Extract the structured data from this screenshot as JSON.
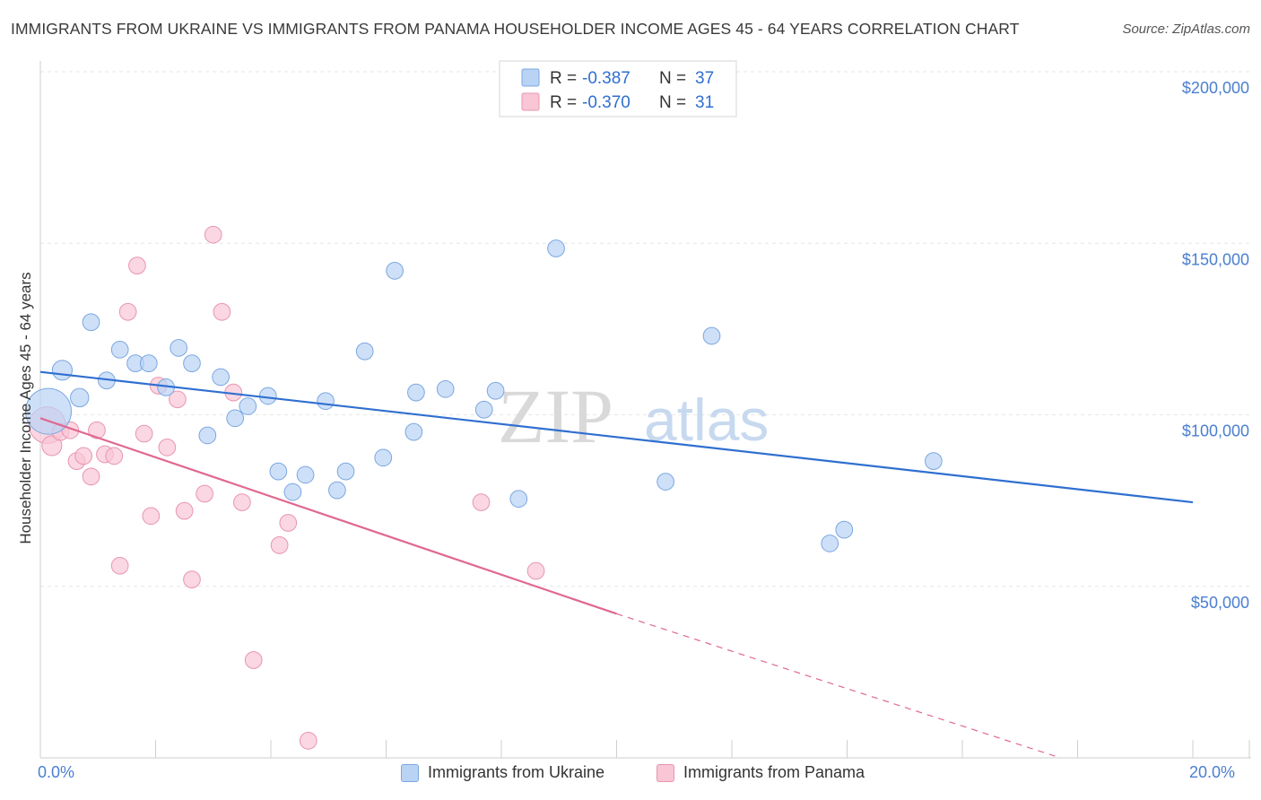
{
  "title": "IMMIGRANTS FROM UKRAINE VS IMMIGRANTS FROM PANAMA HOUSEHOLDER INCOME AGES 45 - 64 YEARS CORRELATION CHART",
  "source": "Source: ZipAtlas.com",
  "watermark": {
    "zip": "ZIP",
    "atlas": "atlas"
  },
  "colors": {
    "ukraine_fill": "#b9d3f5",
    "ukraine_stroke": "#7ba7e0",
    "ukraine_line": "#2f6fd0",
    "panama_fill": "#f8c6d5",
    "panama_stroke": "#e995b0",
    "panama_line": "#e06891",
    "axis_text": "#4a7fd0"
  },
  "legend": {
    "rows": [
      {
        "r_label": "R =",
        "r_value": "-0.387",
        "n_label": "N =",
        "n_value": "37"
      },
      {
        "r_label": "R =",
        "r_value": "-0.370",
        "n_label": "N =",
        "n_value": "31"
      }
    ]
  },
  "chart_data": {
    "type": "scatter",
    "title": "IMMIGRANTS FROM UKRAINE VS IMMIGRANTS FROM PANAMA HOUSEHOLDER INCOME AGES 45 - 64 YEARS CORRELATION CHART",
    "xlabel": "",
    "ylabel": "Householder Income Ages 45 - 64 years",
    "xlim": [
      0,
      20
    ],
    "ylim": [
      0,
      200000
    ],
    "x_tick_labels": [
      "0.0%",
      "20.0%"
    ],
    "y_ticks": [
      50000,
      100000,
      150000,
      200000
    ],
    "y_tick_labels": [
      "$50,000",
      "$100,000",
      "$150,000",
      "$200,000"
    ],
    "grid": true,
    "legend_position": "top-center",
    "series": [
      {
        "name": "Immigrants from Ukraine",
        "r": -0.387,
        "n": 37,
        "trend": {
          "x": [
            0,
            20
          ],
          "y": [
            112500,
            74500
          ],
          "dashed_from_x": null
        },
        "points": [
          {
            "x": 0.14,
            "y": 101000,
            "size": 3.0
          },
          {
            "x": 0.38,
            "y": 113000,
            "size": 1.3
          },
          {
            "x": 0.68,
            "y": 105000,
            "size": 1.2
          },
          {
            "x": 0.88,
            "y": 127000,
            "size": 1.1
          },
          {
            "x": 1.15,
            "y": 110000,
            "size": 1.1
          },
          {
            "x": 1.38,
            "y": 119000,
            "size": 1.1
          },
          {
            "x": 1.65,
            "y": 115000,
            "size": 1.1
          },
          {
            "x": 1.88,
            "y": 115000,
            "size": 1.1
          },
          {
            "x": 2.18,
            "y": 108000,
            "size": 1.1
          },
          {
            "x": 2.4,
            "y": 119500,
            "size": 1.1
          },
          {
            "x": 2.63,
            "y": 115000,
            "size": 1.1
          },
          {
            "x": 2.9,
            "y": 94000,
            "size": 1.1
          },
          {
            "x": 3.13,
            "y": 111000,
            "size": 1.1
          },
          {
            "x": 3.38,
            "y": 99000,
            "size": 1.1
          },
          {
            "x": 3.6,
            "y": 102500,
            "size": 1.1
          },
          {
            "x": 3.95,
            "y": 105500,
            "size": 1.1
          },
          {
            "x": 4.13,
            "y": 83500,
            "size": 1.1
          },
          {
            "x": 4.38,
            "y": 77500,
            "size": 1.1
          },
          {
            "x": 4.6,
            "y": 82500,
            "size": 1.1
          },
          {
            "x": 4.95,
            "y": 104000,
            "size": 1.1
          },
          {
            "x": 5.15,
            "y": 78000,
            "size": 1.1
          },
          {
            "x": 5.3,
            "y": 83500,
            "size": 1.1
          },
          {
            "x": 5.63,
            "y": 118500,
            "size": 1.1
          },
          {
            "x": 5.95,
            "y": 87500,
            "size": 1.1
          },
          {
            "x": 6.15,
            "y": 142000,
            "size": 1.1
          },
          {
            "x": 6.48,
            "y": 95000,
            "size": 1.1
          },
          {
            "x": 6.52,
            "y": 106500,
            "size": 1.1
          },
          {
            "x": 7.03,
            "y": 107500,
            "size": 1.1
          },
          {
            "x": 7.7,
            "y": 101500,
            "size": 1.1
          },
          {
            "x": 7.9,
            "y": 107000,
            "size": 1.1
          },
          {
            "x": 8.3,
            "y": 75500,
            "size": 1.1
          },
          {
            "x": 8.95,
            "y": 148500,
            "size": 1.1
          },
          {
            "x": 10.85,
            "y": 80500,
            "size": 1.1
          },
          {
            "x": 11.65,
            "y": 123000,
            "size": 1.1
          },
          {
            "x": 13.7,
            "y": 62500,
            "size": 1.1
          },
          {
            "x": 13.95,
            "y": 66500,
            "size": 1.1
          },
          {
            "x": 15.5,
            "y": 86500,
            "size": 1.1
          }
        ]
      },
      {
        "name": "Immigrants from Panama",
        "r": -0.37,
        "n": 31,
        "trend": {
          "x": [
            0,
            10
          ],
          "y": [
            99000,
            42000
          ],
          "dashed_to": {
            "x": 17.7,
            "y": 0
          }
        },
        "points": [
          {
            "x": 0.12,
            "y": 97000,
            "size": 2.4
          },
          {
            "x": 0.2,
            "y": 91000,
            "size": 1.3
          },
          {
            "x": 0.35,
            "y": 95000,
            "size": 1.1
          },
          {
            "x": 0.52,
            "y": 95500,
            "size": 1.1
          },
          {
            "x": 0.63,
            "y": 86500,
            "size": 1.1
          },
          {
            "x": 0.75,
            "y": 88000,
            "size": 1.1
          },
          {
            "x": 0.88,
            "y": 82000,
            "size": 1.1
          },
          {
            "x": 0.98,
            "y": 95500,
            "size": 1.1
          },
          {
            "x": 1.12,
            "y": 88500,
            "size": 1.1
          },
          {
            "x": 1.28,
            "y": 88000,
            "size": 1.1
          },
          {
            "x": 1.38,
            "y": 56000,
            "size": 1.1
          },
          {
            "x": 1.52,
            "y": 130000,
            "size": 1.1
          },
          {
            "x": 1.68,
            "y": 143500,
            "size": 1.1
          },
          {
            "x": 1.8,
            "y": 94500,
            "size": 1.1
          },
          {
            "x": 1.92,
            "y": 70500,
            "size": 1.1
          },
          {
            "x": 2.05,
            "y": 108500,
            "size": 1.1
          },
          {
            "x": 2.2,
            "y": 90500,
            "size": 1.1
          },
          {
            "x": 2.38,
            "y": 104500,
            "size": 1.1
          },
          {
            "x": 2.5,
            "y": 72000,
            "size": 1.1
          },
          {
            "x": 2.63,
            "y": 52000,
            "size": 1.1
          },
          {
            "x": 2.85,
            "y": 77000,
            "size": 1.1
          },
          {
            "x": 3.0,
            "y": 152500,
            "size": 1.1
          },
          {
            "x": 3.15,
            "y": 130000,
            "size": 1.1
          },
          {
            "x": 3.35,
            "y": 106500,
            "size": 1.1
          },
          {
            "x": 3.5,
            "y": 74500,
            "size": 1.1
          },
          {
            "x": 3.7,
            "y": 28500,
            "size": 1.1
          },
          {
            "x": 4.15,
            "y": 62000,
            "size": 1.1
          },
          {
            "x": 4.3,
            "y": 68500,
            "size": 1.1
          },
          {
            "x": 4.65,
            "y": 5000,
            "size": 1.1
          },
          {
            "x": 7.65,
            "y": 74500,
            "size": 1.1
          },
          {
            "x": 8.6,
            "y": 54500,
            "size": 1.1
          }
        ]
      }
    ]
  }
}
